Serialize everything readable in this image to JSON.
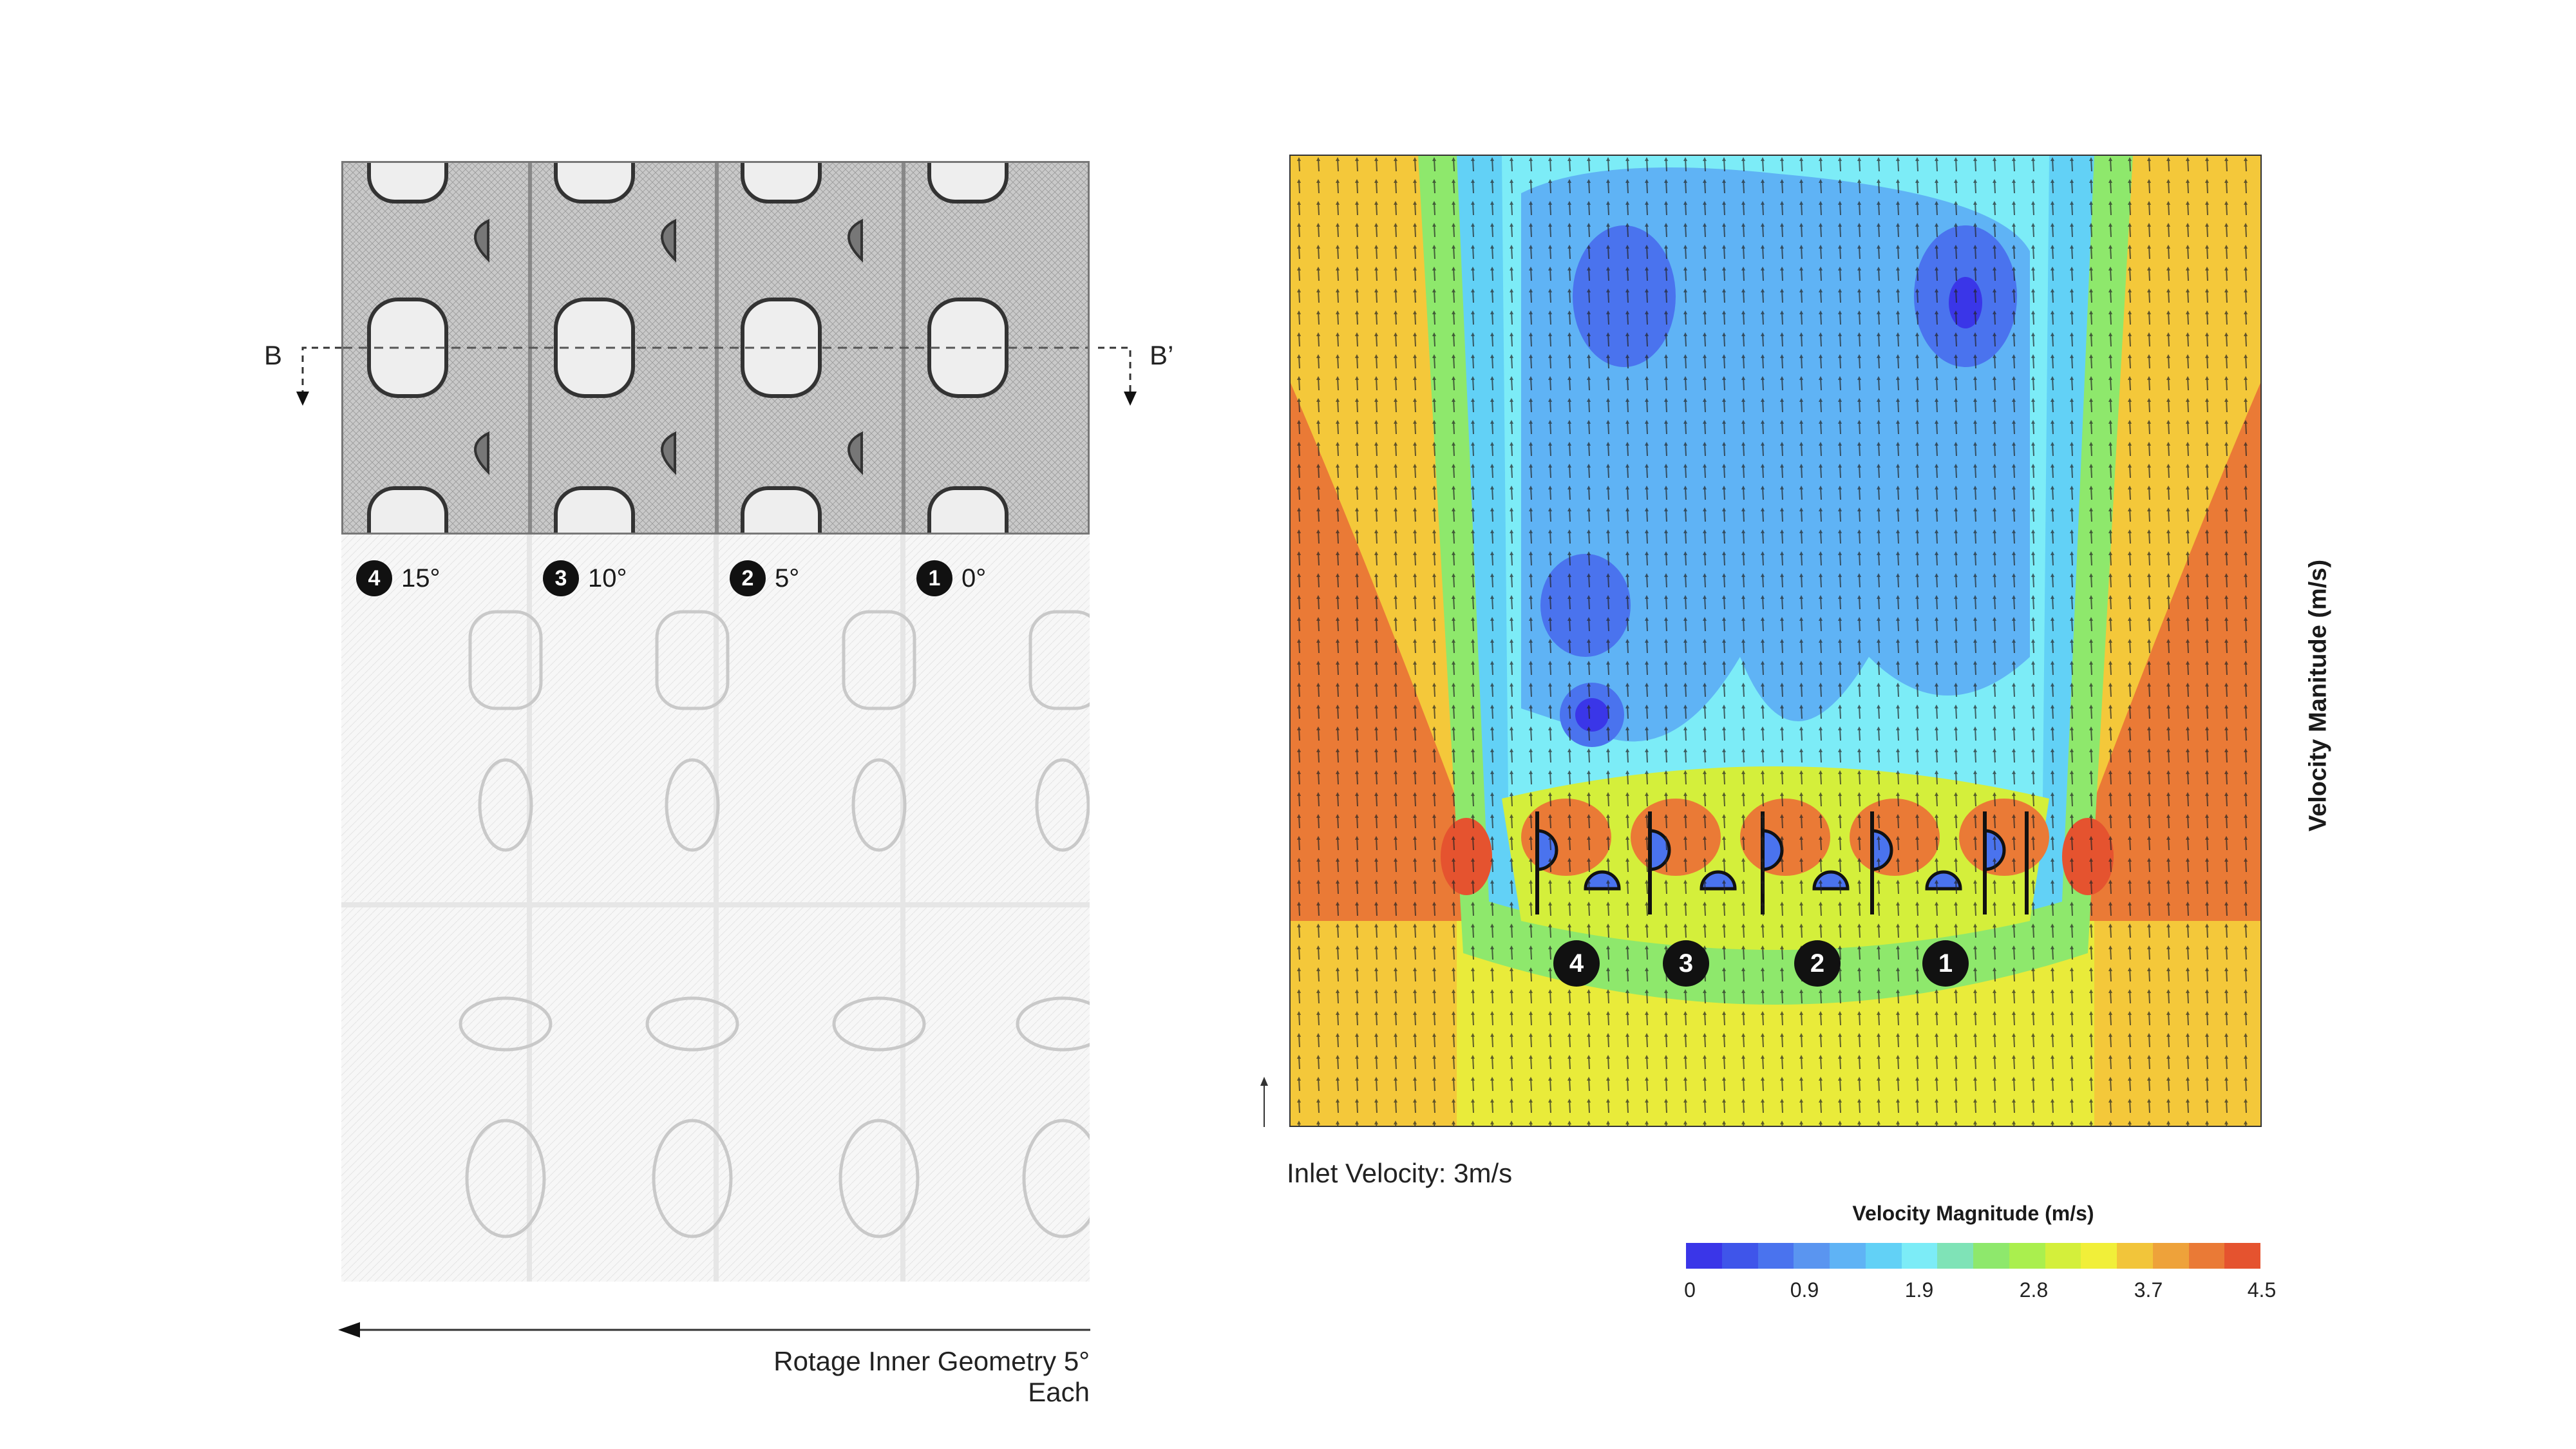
{
  "left": {
    "section_marker_left": "B",
    "section_marker_right": "B’",
    "rotations": [
      {
        "num": "4",
        "angle": "15°"
      },
      {
        "num": "3",
        "angle": "10°"
      },
      {
        "num": "2",
        "angle": "5°"
      },
      {
        "num": "1",
        "angle": "0°"
      }
    ],
    "caption": "Rotage Inner Geometry 5° Each"
  },
  "right": {
    "panel_markers": [
      "4",
      "3",
      "2",
      "1"
    ],
    "inlet_label": "Inlet Velocity: 3m/s",
    "legend_title": "Velocity Magnitude (m/s)",
    "side_label": "Velocity Manitude (m/s)",
    "legend_ticks": [
      "0",
      "0.9",
      "1.9",
      "2.8",
      "3.7",
      "4.5"
    ],
    "legend_colors": [
      "#3a36e8",
      "#3f55ea",
      "#4a73ee",
      "#5a95f0",
      "#5fb3f5",
      "#62d1f6",
      "#7cecf7",
      "#7fe3b7",
      "#8ee86c",
      "#aaef4e",
      "#d4ef3b",
      "#f1ef39",
      "#f2c53a",
      "#eea23a",
      "#ea7a36",
      "#e5532f"
    ]
  }
}
